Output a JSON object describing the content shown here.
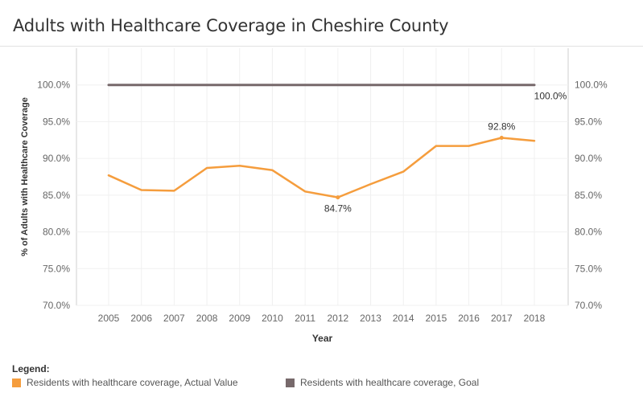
{
  "chart_data": {
    "type": "line",
    "title": "Adults with Healthcare Coverage in Cheshire County",
    "xlabel": "Year",
    "ylabel": "% of Adults with Healthcare Coverage",
    "ylim": [
      70,
      105
    ],
    "y_ticks": [
      "100.0%",
      "95.0%",
      "90.0%",
      "85.0%",
      "80.0%",
      "75.0%",
      "70.0%"
    ],
    "y_tick_values": [
      100,
      95,
      90,
      85,
      80,
      75,
      70
    ],
    "categories": [
      "2005",
      "2006",
      "2007",
      "2008",
      "2009",
      "2010",
      "2011",
      "2012",
      "2013",
      "2014",
      "2015",
      "2016",
      "2017",
      "2018"
    ],
    "series": [
      {
        "name": "Residents with healthcare coverage, Actual Value",
        "color": "#F59D3D",
        "values": [
          87.7,
          85.7,
          85.6,
          88.7,
          89.0,
          88.4,
          85.5,
          84.7,
          86.5,
          88.2,
          91.7,
          91.7,
          92.8,
          92.4
        ]
      },
      {
        "name": "Residents with healthcare coverage, Goal",
        "color": "#77696B",
        "values": [
          100,
          100,
          100,
          100,
          100,
          100,
          100,
          100,
          100,
          100,
          100,
          100,
          100,
          100
        ]
      }
    ],
    "annotations": [
      {
        "series": 0,
        "index": 7,
        "label": "84.7%",
        "position": "below"
      },
      {
        "series": 0,
        "index": 12,
        "label": "92.8%",
        "position": "above"
      },
      {
        "series": 1,
        "index": 13,
        "label": "100.0%",
        "position": "below"
      }
    ],
    "legend_title": "Legend:",
    "legend_position": "bottom-left",
    "grid": true,
    "dual_y_axis": true
  }
}
